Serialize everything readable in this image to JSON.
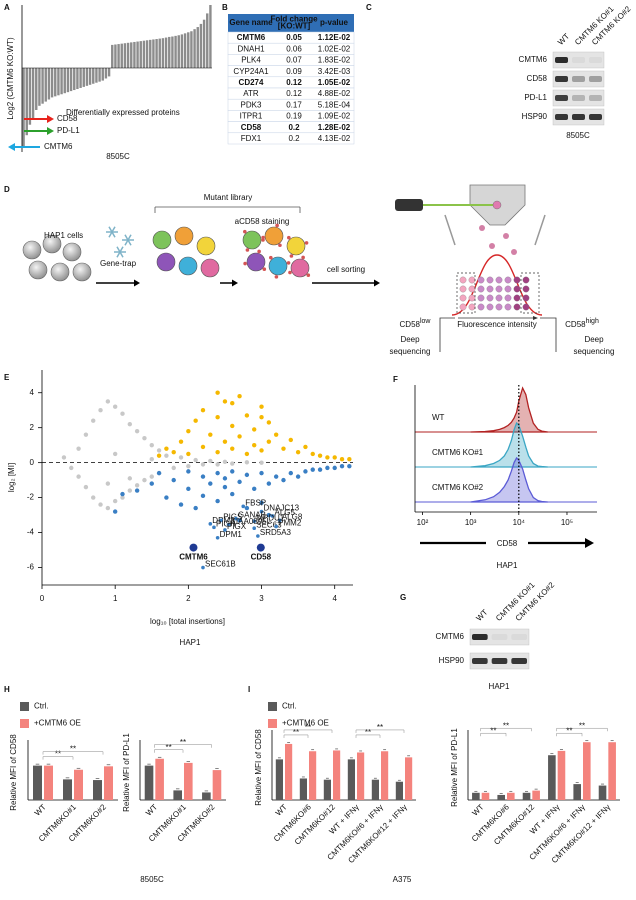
{
  "panels": [
    "A",
    "B",
    "C",
    "D",
    "E",
    "F",
    "G",
    "H",
    "I"
  ],
  "chart_data": [
    {
      "type": "bar",
      "ylabel": "Log2 (CMTM6 KO:WT)",
      "color": "#8c8c8c",
      "ylim": [
        -4,
        3
      ],
      "values": [
        -3.8,
        -3.2,
        -2.7,
        -2.4,
        -2.0,
        -1.8,
        -1.7,
        -1.6,
        -1.5,
        -1.4,
        -1.35,
        -1.3,
        -1.25,
        -1.2,
        -1.15,
        -1.1,
        -1.05,
        -1.0,
        -0.95,
        -0.9,
        -0.85,
        -0.8,
        -0.75,
        -0.7,
        -0.65,
        -0.6,
        -0.5,
        -0.4,
        1.1,
        1.12,
        1.14,
        1.16,
        1.18,
        1.2,
        1.22,
        1.24,
        1.26,
        1.28,
        1.3,
        1.32,
        1.34,
        1.36,
        1.38,
        1.4,
        1.42,
        1.45,
        1.48,
        1.5,
        1.53,
        1.56,
        1.6,
        1.65,
        1.7,
        1.75,
        1.85,
        1.95,
        2.1,
        2.3,
        2.6,
        3.0
      ],
      "markers": [
        {
          "label": "CD58",
          "color": "#e8231c"
        },
        {
          "label": "PD-L1",
          "color": "#2ca02c"
        },
        {
          "label": "CMTM6",
          "color": "#1ea7e0"
        }
      ],
      "annotation": "Differentially expressed proteins",
      "caption": "8505C"
    },
    {
      "type": "scatter",
      "xlabel": "log₁₀ [total insertions]",
      "ylabel": "log₂ [MI]",
      "caption": "HAP1",
      "xlim": [
        0,
        4.25
      ],
      "ylim": [
        -7,
        5.3
      ],
      "xticks": [
        0,
        1,
        2,
        3,
        4
      ],
      "yticks": [
        -6,
        -4,
        -2,
        0,
        2,
        4
      ],
      "reference_y": 0,
      "series": [
        {
          "color": "#c8c8c8",
          "x": [
            0.3,
            0.4,
            0.5,
            0.5,
            0.6,
            0.6,
            0.7,
            0.7,
            0.8,
            0.8,
            0.9,
            0.9,
            1.0,
            1.0,
            1.1,
            1.1,
            1.2,
            1.2,
            1.3,
            1.3,
            1.4,
            1.4,
            1.5,
            1.5,
            1.6,
            1.6,
            1.7,
            1.8,
            1.9,
            2.0,
            2.1,
            2.2,
            2.3,
            2.4,
            2.5,
            2.6,
            2.8,
            3.0,
            1.0,
            1.2,
            0.9,
            1.5
          ],
          "values": [
            0.3,
            -0.3,
            0.8,
            -0.8,
            1.6,
            -1.4,
            2.4,
            -2.0,
            3.0,
            -2.4,
            3.5,
            -2.6,
            3.2,
            -2.2,
            2.8,
            -2.0,
            2.2,
            -1.6,
            1.8,
            -1.3,
            1.4,
            -1.0,
            1.0,
            -0.8,
            0.7,
            -0.6,
            0.4,
            -0.3,
            0.3,
            -0.2,
            0.15,
            -0.1,
            0.1,
            -0.1,
            0.05,
            -0.05,
            0.02,
            0.0,
            0.5,
            -0.9,
            -1.2,
            0.2
          ]
        },
        {
          "color": "#f5b800",
          "x": [
            1.6,
            1.7,
            1.8,
            1.9,
            2.0,
            2.0,
            2.1,
            2.2,
            2.2,
            2.3,
            2.4,
            2.4,
            2.5,
            2.5,
            2.6,
            2.6,
            2.7,
            2.7,
            2.8,
            2.8,
            2.9,
            2.9,
            3.0,
            3.0,
            3.1,
            3.1,
            3.2,
            3.3,
            3.4,
            3.5,
            3.6,
            3.7,
            3.8,
            3.9,
            4.0,
            4.1,
            4.2,
            2.4,
            2.6,
            3.0
          ],
          "values": [
            0.4,
            0.8,
            0.6,
            1.2,
            0.5,
            1.8,
            2.4,
            0.9,
            3.0,
            1.6,
            2.6,
            0.6,
            3.5,
            1.2,
            2.1,
            0.8,
            3.8,
            1.5,
            2.7,
            0.5,
            1.9,
            1.0,
            3.2,
            0.7,
            2.3,
            1.2,
            1.6,
            0.8,
            1.3,
            0.6,
            0.9,
            0.5,
            0.4,
            0.3,
            0.3,
            0.2,
            0.2,
            4.0,
            3.4,
            2.6
          ]
        },
        {
          "color": "#3a7fc4",
          "x": [
            1.0,
            1.1,
            1.3,
            1.5,
            1.6,
            1.7,
            1.8,
            1.9,
            2.0,
            2.0,
            2.1,
            2.2,
            2.2,
            2.3,
            2.4,
            2.4,
            2.5,
            2.5,
            2.6,
            2.6,
            2.7,
            2.8,
            2.8,
            2.9,
            3.0,
            3.0,
            3.1,
            3.2,
            3.3,
            3.4,
            3.5,
            3.6,
            3.7,
            3.8,
            3.9,
            4.0,
            4.1,
            4.2,
            2.7,
            3.1
          ],
          "values": [
            -2.8,
            -1.8,
            -1.6,
            -1.2,
            -0.6,
            -2.0,
            -1.0,
            -2.4,
            -0.5,
            -1.5,
            -2.6,
            -0.8,
            -1.9,
            -1.2,
            -0.6,
            -2.2,
            -1.4,
            -0.9,
            -1.8,
            -0.5,
            -1.1,
            -2.6,
            -0.7,
            -1.5,
            -2.3,
            -0.6,
            -1.2,
            -0.8,
            -1.0,
            -0.6,
            -0.8,
            -0.5,
            -0.4,
            -0.4,
            -0.3,
            -0.3,
            -0.2,
            -0.2,
            -3.3,
            -3.0
          ]
        },
        {
          "color": "#3a7fc4",
          "labels": [
            "FBSP",
            "DNAJC13",
            "ALG5",
            "ALG8",
            "DPM3",
            "PIGS",
            "GANAB",
            "MPDU1",
            "PIGH",
            "KIAA0895L",
            "PIGX",
            "SEC63",
            "PMM2",
            "DPM1",
            "SRD5A3",
            "SEC61B"
          ],
          "x": [
            2.75,
            3.0,
            3.15,
            3.25,
            2.3,
            2.45,
            2.65,
            2.9,
            2.35,
            2.55,
            2.5,
            2.9,
            3.2,
            2.4,
            2.95,
            2.2
          ],
          "values": [
            -2.5,
            -2.8,
            -3.05,
            -3.3,
            -3.5,
            -3.3,
            -3.2,
            -3.35,
            -3.7,
            -3.55,
            -3.85,
            -3.75,
            -3.65,
            -4.3,
            -4.2,
            -6.0
          ]
        },
        {
          "color": "#1f3a93",
          "bold": true,
          "labels": [
            "CMTM6",
            "CD58"
          ],
          "x": [
            2.07,
            2.99
          ],
          "values": [
            -4.86,
            -4.86
          ]
        }
      ]
    },
    {
      "type": "density",
      "xscale": "log",
      "xlabel": "CD58",
      "caption": "HAP1",
      "xlim": [
        70,
        420000
      ],
      "ylim": [
        0,
        1
      ],
      "xticks": [
        {
          "value": 100,
          "label": "10²"
        },
        {
          "value": 1000,
          "label": "10³"
        },
        {
          "value": 10000,
          "label": "10⁴"
        },
        {
          "value": 100000,
          "label": "10⁵"
        }
      ],
      "reference_x": 10000,
      "x": [
        1000,
        2000,
        3000,
        4000,
        5000,
        6000,
        7000,
        8000,
        9000,
        10000,
        12000,
        14000,
        16000,
        20000,
        25000,
        30000,
        40000
      ],
      "series": [
        {
          "name": "WT",
          "color": "#b22222",
          "values": [
            0,
            0.01,
            0.03,
            0.06,
            0.1,
            0.15,
            0.22,
            0.32,
            0.45,
            0.7,
            1.0,
            0.85,
            0.55,
            0.2,
            0.06,
            0.02,
            0
          ]
        },
        {
          "name": "CMTM6 KO#1",
          "color": "#3aa6c4",
          "values": [
            0,
            0.03,
            0.08,
            0.15,
            0.25,
            0.4,
            0.6,
            0.85,
            1.0,
            0.95,
            0.7,
            0.45,
            0.25,
            0.08,
            0.02,
            0.01,
            0
          ]
        },
        {
          "name": "CMTM6 KO#2",
          "color": "#5b5bd6",
          "values": [
            0,
            0.05,
            0.12,
            0.22,
            0.35,
            0.5,
            0.7,
            0.9,
            1.0,
            0.95,
            0.75,
            0.5,
            0.3,
            0.1,
            0.03,
            0.01,
            0
          ]
        }
      ]
    },
    {
      "type": "bar",
      "ylabel": "Relative MFI of CD58",
      "ylim": [
        0,
        1.6
      ],
      "significance": "**",
      "legend": true,
      "caption": "8505C",
      "categories": [
        "WT",
        "CMTM6KO#1",
        "CMTM6KO#2"
      ],
      "series": [
        {
          "name": "Ctrl.",
          "color": "#5a5a5a",
          "values": [
            1.0,
            0.6,
            0.58
          ]
        },
        {
          "name": "+CMTM6 OE",
          "color": "#f4837d",
          "values": [
            1.0,
            0.88,
            0.98
          ]
        }
      ]
    },
    {
      "type": "bar",
      "ylabel": "Relative MFI of PD-L1",
      "ylim": [
        0,
        1.6
      ],
      "significance": "**",
      "categories": [
        "WT",
        "CMTM6KO#1",
        "CMTM6KO#2"
      ],
      "series": [
        {
          "name": "Ctrl.",
          "color": "#5a5a5a",
          "values": [
            1.0,
            0.28,
            0.22
          ]
        },
        {
          "name": "+CMTM6 OE",
          "color": "#f4837d",
          "values": [
            1.2,
            1.08,
            0.87
          ]
        }
      ]
    },
    {
      "type": "bar",
      "ylabel": "Relative MFI of CD58",
      "ylim": [
        0,
        1.6
      ],
      "significance": "**",
      "legend": true,
      "caption": "A375",
      "categories": [
        "WT",
        "CMTM6KO#6",
        "CMTM6KO#12",
        "WT + IFNγ",
        "CMTM6KO#6 + IFNγ",
        "CMTM6KO#12 + IFNγ"
      ],
      "series": [
        {
          "name": "Ctrl.",
          "color": "#5a5a5a",
          "values": [
            1.0,
            0.53,
            0.5,
            1.0,
            0.5,
            0.45
          ]
        },
        {
          "name": "+CMTM6 OE",
          "color": "#f4837d",
          "values": [
            1.38,
            1.2,
            1.22,
            1.17,
            1.2,
            1.05
          ]
        }
      ]
    },
    {
      "type": "bar",
      "ylabel": "Relative MFI of PD-L1",
      "ylim": [
        0,
        0.9
      ],
      "significance": "**",
      "categories": [
        "WT",
        "CMTM6KO#6",
        "CMTM6KO#12",
        "WT + IFNγ",
        "CMTM6KO#6 + IFNγ",
        "CMTM6KO#12 + IFNγ"
      ],
      "series": [
        {
          "name": "Ctrl.",
          "color": "#5a5a5a",
          "values": [
            0.1,
            0.07,
            0.1,
            0.62,
            0.22,
            0.2
          ]
        },
        {
          "name": "+CMTM6 OE",
          "color": "#f4837d",
          "values": [
            0.1,
            0.1,
            0.13,
            0.68,
            0.8,
            0.8
          ]
        }
      ]
    }
  ],
  "table": {
    "header": [
      [
        "Gene name"
      ],
      [
        "Fold change",
        "[KO:WT]"
      ],
      [
        "p-value"
      ]
    ],
    "header_color": "#2f6eb5",
    "rows": [
      [
        "CMTM6",
        "0.05",
        "1.12E-02"
      ],
      [
        "DNAH1",
        "0.06",
        "1.02E-02"
      ],
      [
        "PLK4",
        "0.07",
        "1.83E-02"
      ],
      [
        "CYP24A1",
        "0.09",
        "3.42E-03"
      ],
      [
        "CD274",
        "0.12",
        "1.05E-02"
      ],
      [
        "ATR",
        "0.12",
        "4.88E-02"
      ],
      [
        "PDK3",
        "0.17",
        "5.18E-04"
      ],
      [
        "ITPR1",
        "0.19",
        "1.09E-02"
      ],
      [
        "CD58",
        "0.2",
        "1.28E-02"
      ],
      [
        "FDX1",
        "0.2",
        "4.13E-02"
      ]
    ],
    "row_colors": [
      "#1f77d0",
      "#222222",
      "#222222",
      "#222222",
      "#2ca02c",
      "#222222",
      "#222222",
      "#222222",
      "#e02020",
      "#222222"
    ]
  },
  "blot_c": {
    "lanes": [
      "WT",
      "CMTM6 KO#1",
      "CMTM6 KO#2"
    ],
    "proteins": [
      "CMTM6",
      "CD58",
      "PD-L1",
      "HSP90"
    ],
    "cell_line": "8505C"
  },
  "blot_g": {
    "lanes": [
      "WT",
      "CMTM6 KO#1",
      "CMTM6 KO#2"
    ],
    "proteins": [
      "CMTM6",
      "HSP90"
    ],
    "cell_line": "HAP1"
  },
  "diagram": {
    "cells": "HAP1 cells",
    "gene_trap": "Gene-trap",
    "library": "Mutant library",
    "staining": "aCD58 staining",
    "sorting": "cell sorting",
    "low": {
      "text": "CD58",
      "sup": "low"
    },
    "high": {
      "text": "CD58",
      "sup": "high"
    },
    "seq_low": [
      "Deep",
      "sequencing"
    ],
    "seq_high": [
      "Deep",
      "sequencing"
    ],
    "intensity": "Fluorescence intensity"
  }
}
